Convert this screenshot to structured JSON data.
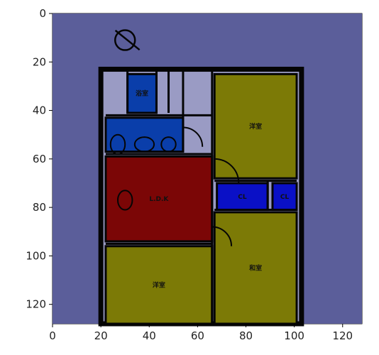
{
  "chart_data": {
    "type": "heatmap",
    "title": "",
    "xlabel": "",
    "ylabel": "",
    "xlim": [
      0,
      128
    ],
    "ylim": [
      128,
      0
    ],
    "x_ticks": [
      "0",
      "20",
      "40",
      "60",
      "80",
      "100",
      "120"
    ],
    "y_ticks": [
      "0",
      "20",
      "40",
      "60",
      "80",
      "100",
      "120"
    ],
    "colors": {
      "background": "#5b5e9a",
      "interior": "#9a9bc4",
      "wall": "#050505",
      "red_room": "#7b0606",
      "olive_room": "#7c7a06",
      "blue_room": "#0a3eaa",
      "deep_blue": "#0a10c6"
    },
    "rooms": [
      {
        "name": "outline",
        "x0": 20,
        "y0": 23,
        "x1": 103,
        "y1": 128,
        "color": "interior"
      },
      {
        "name": "olive-top-right",
        "x0": 67,
        "y0": 25,
        "x1": 101,
        "y1": 68,
        "color": "olive_room",
        "text": "洋室"
      },
      {
        "name": "red-ldk",
        "x0": 22,
        "y0": 59,
        "x1": 66,
        "y1": 94,
        "color": "red_room",
        "text": "L.D.K"
      },
      {
        "name": "olive-bottom-left",
        "x0": 22,
        "y0": 96,
        "x1": 66,
        "y1": 128,
        "color": "olive_room",
        "text": "洋室"
      },
      {
        "name": "olive-bottom-right",
        "x0": 67,
        "y0": 82,
        "x1": 101,
        "y1": 128,
        "color": "olive_room",
        "text": "和室"
      },
      {
        "name": "blue-wc",
        "x0": 31,
        "y0": 25,
        "x1": 43,
        "y1": 41,
        "color": "blue_room",
        "text": "浴室"
      },
      {
        "name": "blue-bath",
        "x0": 22,
        "y0": 43,
        "x1": 54,
        "y1": 57,
        "color": "blue_room",
        "text": ""
      },
      {
        "name": "closet-left",
        "x0": 68,
        "y0": 70,
        "x1": 89,
        "y1": 81,
        "color": "deep_blue",
        "text": "CL"
      },
      {
        "name": "closet-right",
        "x0": 91,
        "y0": 70,
        "x1": 101,
        "y1": 81,
        "color": "deep_blue",
        "text": "CL"
      }
    ]
  }
}
